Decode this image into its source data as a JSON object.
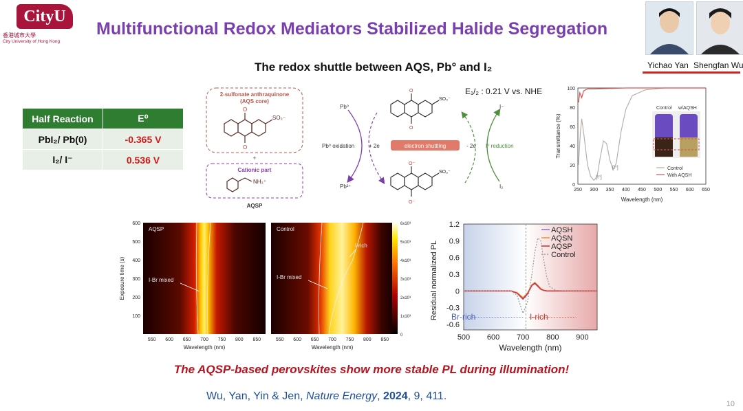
{
  "header": {
    "title": "Multifunctional Redox Mediators Stabilized Halide Segregation",
    "subtitle": "The redox shuttle between AQS, Pb° and I₂"
  },
  "logo": {
    "mark": "CityU",
    "name_zh": "香港城市大學",
    "name_en": "City University of Hong Kong"
  },
  "authors": [
    {
      "name": "Yichao Yan"
    },
    {
      "name": "Shengfan Wu"
    }
  ],
  "half_reaction_table": {
    "headers": [
      "Half Reaction",
      "E⁰"
    ],
    "rows": [
      {
        "reaction": "PbI₂/ Pb(0)",
        "value": "-0.365 V"
      },
      {
        "reaction": "I₂/ I⁻",
        "value": "0.536 V"
      }
    ]
  },
  "scheme": {
    "aqs_core_label": "2-sulfonate anthraquinone",
    "aqs_core_sub": "(AQS core)",
    "plus": "+",
    "cationic_label": "Cationic part",
    "ammonium": "NH₃⁺",
    "caption": "AQSP",
    "potential": "E₁/₂ : 0.21 V vs. NHE",
    "pb0": "Pb⁰",
    "pb2": "Pb²⁺",
    "i_minus": "I⁻",
    "i2": "I₂",
    "pb_oxidation": "Pb⁰ oxidation",
    "plus2e": "+ 2e",
    "minus2e": "- 2e",
    "i_reduction": "I⁰ reduction",
    "electron_shuttling": "electron shuttling",
    "so3": "SO₃⁻",
    "o_minus": "O⁻"
  },
  "transmittance_chart": {
    "type": "line",
    "xlabel": "Wavelength (nm)",
    "ylabel": "Transmittance (%)",
    "xticks": [
      250,
      300,
      350,
      400,
      450,
      500,
      550,
      600,
      650
    ],
    "yticks": [
      0,
      20,
      40,
      60,
      80,
      100
    ],
    "legend": [
      "Control",
      "With AQSH"
    ],
    "vial_labels": [
      "Control",
      "w/AQSH"
    ],
    "peak_labels": [
      "[I⁰]",
      "[I⁰]"
    ]
  },
  "heatmaps": {
    "ylabel": "Exposure time (s)",
    "xlabel": "Wavelength (nm)",
    "yticks": [
      100,
      200,
      300,
      400,
      500,
      600
    ],
    "xticks": [
      550,
      600,
      650,
      700,
      750,
      800,
      850
    ],
    "left_label": "AQSP",
    "right_label": "Control",
    "mixed_label": "I-Br mixed",
    "rich_label": "I-rich",
    "colorbar_ticks": [
      "0",
      "1x10³",
      "2x10³",
      "3x10³",
      "4x10³",
      "5x10³",
      "6x10³"
    ]
  },
  "chart_data": {
    "type": "line",
    "xlabel": "Wavelength (nm)",
    "ylabel": "Residual normalized PL",
    "xlim": [
      500,
      950
    ],
    "ylim": [
      -0.7,
      1.2
    ],
    "xticks": [
      500,
      600,
      700,
      800,
      900
    ],
    "yticks": [
      -0.6,
      -0.3,
      0,
      0.3,
      0.6,
      0.9,
      1.2
    ],
    "legend_placement": "top-right",
    "x": [
      500,
      600,
      660,
      680,
      700,
      715,
      730,
      740,
      750,
      760,
      770,
      780,
      790,
      810,
      850,
      950
    ],
    "series": [
      {
        "name": "AQSH",
        "values": [
          0,
          0,
          0,
          -0.04,
          -0.15,
          -0.06,
          0.1,
          0.13,
          0.08,
          0.03,
          0.01,
          0,
          0,
          0,
          0,
          0
        ]
      },
      {
        "name": "AQSN",
        "values": [
          0,
          0,
          0,
          -0.03,
          -0.12,
          -0.04,
          0.11,
          0.15,
          0.1,
          0.04,
          0.01,
          0,
          0,
          0,
          0,
          0
        ]
      },
      {
        "name": "AQSP",
        "values": [
          0,
          0,
          0,
          -0.04,
          -0.14,
          -0.05,
          0.1,
          0.14,
          0.09,
          0.03,
          0.01,
          0,
          0,
          0,
          0,
          0
        ]
      },
      {
        "name": "Control",
        "values": [
          0,
          0,
          0,
          -0.08,
          -0.4,
          -0.2,
          0.3,
          0.7,
          0.95,
          0.9,
          0.55,
          0.25,
          0.08,
          0.01,
          0,
          0
        ]
      }
    ],
    "colors": [
      "#8e7cc3",
      "#f39c34",
      "#d0393a",
      "#999999"
    ],
    "region_labels": [
      "Br-rich",
      "I-rich"
    ]
  },
  "footer": {
    "message": "The AQSP-based perovskites show more stable PL during illumination!",
    "authors": "Wu, Yan, Yin & Jen, ",
    "journal": "Nature Energy",
    "sep1": ", ",
    "year": "2024",
    "rest": ", 9, 411.",
    "page_number": "10"
  }
}
